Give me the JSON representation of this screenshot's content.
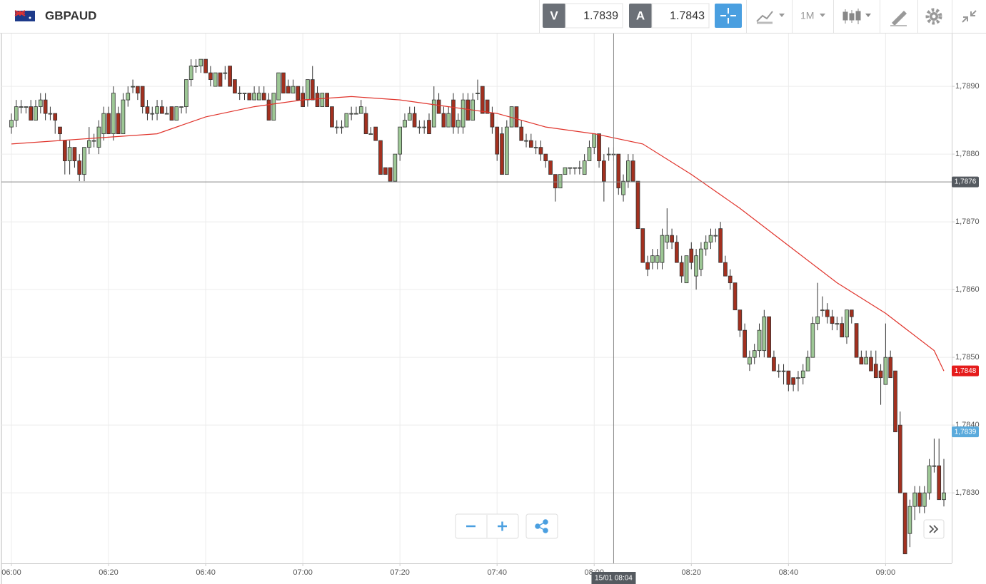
{
  "header": {
    "symbol": "GBPAUD",
    "bid_label": "V",
    "bid": "1.7839",
    "ask_label": "A",
    "ask": "1.7843",
    "timeframe": "1M"
  },
  "chart_data": {
    "type": "candlestick",
    "categories": [
      "06:00",
      null,
      null,
      null,
      null,
      null,
      null,
      null,
      null,
      null,
      null,
      null,
      null,
      null,
      null,
      null,
      null,
      null,
      null,
      null,
      "06:20",
      null,
      null,
      null,
      null,
      null,
      null,
      null,
      null,
      null,
      null,
      null,
      null,
      null,
      null,
      null,
      null,
      null,
      null,
      null,
      "06:40",
      null,
      null,
      null,
      null,
      null,
      null,
      null,
      null,
      null,
      null,
      null,
      null,
      null,
      null,
      null,
      null,
      null,
      null,
      null,
      "07:00",
      null,
      null,
      null,
      null,
      null,
      null,
      null,
      null,
      null,
      null,
      null,
      null,
      null,
      null,
      null,
      null,
      null,
      null,
      null,
      "07:20",
      null,
      null,
      null,
      null,
      null,
      null,
      null,
      null,
      null,
      null,
      null,
      null,
      null,
      null,
      null,
      null,
      null,
      null,
      null,
      "07:40",
      null,
      null,
      null,
      null,
      null,
      null,
      null,
      null,
      null,
      null,
      null,
      null,
      null,
      null,
      null,
      null,
      null,
      null,
      null,
      "08:00",
      null,
      null,
      null,
      null,
      null,
      null,
      null,
      null,
      null,
      null,
      null,
      null,
      null,
      null,
      null,
      null,
      null,
      null,
      null,
      "08:20",
      null,
      null,
      null,
      null,
      null,
      null,
      null,
      null,
      null,
      null,
      null,
      null,
      null,
      null,
      null,
      null,
      null,
      null,
      null,
      "08:40",
      null,
      null,
      null,
      null,
      null,
      null,
      null,
      null,
      null,
      null,
      null,
      null,
      null,
      null,
      null,
      null,
      null,
      null,
      null,
      "09:00",
      null,
      null,
      null,
      null,
      null,
      null,
      null,
      null,
      null,
      null,
      null,
      null
    ],
    "ohlc": [
      [
        1.7884,
        1.7886,
        1.7883,
        1.7885
      ],
      [
        1.7885,
        1.7888,
        1.7884,
        1.7887
      ],
      [
        1.7887,
        1.7888,
        1.7886,
        1.7887
      ],
      [
        1.7887,
        1.7887,
        1.7886,
        1.7887
      ],
      [
        1.7887,
        1.7888,
        1.7885,
        1.7885
      ],
      [
        1.7885,
        1.7888,
        1.7885,
        1.7887
      ],
      [
        1.7887,
        1.7889,
        1.7886,
        1.7888
      ],
      [
        1.7888,
        1.7889,
        1.7885,
        1.7886
      ],
      [
        1.7886,
        1.7887,
        1.7885,
        1.7886
      ],
      [
        1.7886,
        1.7886,
        1.7883,
        1.7885
      ],
      [
        1.7884,
        1.7884,
        1.7882,
        1.7883
      ],
      [
        1.7882,
        1.7882,
        1.7877,
        1.7879
      ],
      [
        1.7879,
        1.7882,
        1.7877,
        1.7881
      ],
      [
        1.7881,
        1.7881,
        1.7878,
        1.7879
      ],
      [
        1.7879,
        1.788,
        1.7876,
        1.7877
      ],
      [
        1.7877,
        1.7881,
        1.7876,
        1.7881
      ],
      [
        1.7881,
        1.7884,
        1.788,
        1.7882
      ],
      [
        1.7882,
        1.7883,
        1.7881,
        1.7882
      ],
      [
        1.7881,
        1.7885,
        1.788,
        1.7884
      ],
      [
        1.7883,
        1.7887,
        1.7882,
        1.7886
      ],
      [
        1.7886,
        1.7887,
        1.7883,
        1.7883
      ],
      [
        1.7883,
        1.789,
        1.7882,
        1.7889
      ],
      [
        1.7886,
        1.7887,
        1.7883,
        1.7883
      ],
      [
        1.7883,
        1.7889,
        1.7883,
        1.7888
      ],
      [
        1.7888,
        1.789,
        1.7887,
        1.7889
      ],
      [
        1.789,
        1.7891,
        1.7889,
        1.789
      ],
      [
        1.789,
        1.789,
        1.7888,
        1.7889
      ],
      [
        1.789,
        1.789,
        1.7886,
        1.7887
      ],
      [
        1.7887,
        1.7888,
        1.7885,
        1.7886
      ],
      [
        1.7886,
        1.7887,
        1.7885,
        1.7886
      ],
      [
        1.7886,
        1.7888,
        1.7885,
        1.7887
      ],
      [
        1.7887,
        1.7888,
        1.7886,
        1.7886
      ],
      [
        1.7886,
        1.7887,
        1.7886,
        1.7886
      ],
      [
        1.7887,
        1.7887,
        1.7885,
        1.7885
      ],
      [
        1.7885,
        1.7887,
        1.7885,
        1.7887
      ],
      [
        1.7887,
        1.7887,
        1.7886,
        1.7887
      ],
      [
        1.7887,
        1.7891,
        1.7886,
        1.7891
      ],
      [
        1.7891,
        1.7894,
        1.789,
        1.7893
      ],
      [
        1.7893,
        1.7894,
        1.7892,
        1.7893
      ],
      [
        1.7893,
        1.7894,
        1.7892,
        1.7894
      ],
      [
        1.7894,
        1.7894,
        1.7892,
        1.7892
      ],
      [
        1.7892,
        1.7893,
        1.789,
        1.7891
      ],
      [
        1.789,
        1.7892,
        1.789,
        1.7892
      ],
      [
        1.7892,
        1.7892,
        1.789,
        1.789
      ],
      [
        1.7892,
        1.7893,
        1.7891,
        1.7892
      ],
      [
        1.7893,
        1.7893,
        1.789,
        1.789
      ],
      [
        1.7891,
        1.7891,
        1.7889,
        1.7889
      ],
      [
        1.7889,
        1.789,
        1.7888,
        1.7889
      ],
      [
        1.7889,
        1.7889,
        1.7888,
        1.7889
      ],
      [
        1.7889,
        1.7889,
        1.7888,
        1.7888
      ],
      [
        1.7888,
        1.789,
        1.7888,
        1.7889
      ],
      [
        1.7888,
        1.789,
        1.7888,
        1.7889
      ],
      [
        1.7889,
        1.789,
        1.7888,
        1.7888
      ],
      [
        1.7888,
        1.7889,
        1.7885,
        1.7885
      ],
      [
        1.7885,
        1.7889,
        1.7885,
        1.7889
      ],
      [
        1.7888,
        1.7892,
        1.7888,
        1.7892
      ],
      [
        1.7892,
        1.7892,
        1.7889,
        1.7889
      ],
      [
        1.789,
        1.7891,
        1.7889,
        1.7889
      ],
      [
        1.7889,
        1.7891,
        1.7889,
        1.789
      ],
      [
        1.789,
        1.789,
        1.7888,
        1.7888
      ],
      [
        1.7889,
        1.789,
        1.7887,
        1.7887
      ],
      [
        1.7888,
        1.7891,
        1.7887,
        1.7891
      ],
      [
        1.7891,
        1.7893,
        1.7888,
        1.7888
      ],
      [
        1.7889,
        1.789,
        1.7887,
        1.7887
      ],
      [
        1.7887,
        1.7889,
        1.7887,
        1.7889
      ],
      [
        1.7889,
        1.7889,
        1.7887,
        1.7887
      ],
      [
        1.7887,
        1.7887,
        1.7884,
        1.7884
      ],
      [
        1.7884,
        1.7885,
        1.7883,
        1.7884
      ],
      [
        1.7884,
        1.7885,
        1.7883,
        1.7884
      ],
      [
        1.7884,
        1.7886,
        1.7884,
        1.7886
      ],
      [
        1.7886,
        1.7887,
        1.7885,
        1.7886
      ],
      [
        1.7886,
        1.7887,
        1.7886,
        1.7886
      ],
      [
        1.7886,
        1.7888,
        1.7886,
        1.7887
      ],
      [
        1.7886,
        1.7887,
        1.7883,
        1.7883
      ],
      [
        1.7883,
        1.7884,
        1.7883,
        1.7883
      ],
      [
        1.7884,
        1.7884,
        1.7882,
        1.7882
      ],
      [
        1.7882,
        1.7882,
        1.7877,
        1.7877
      ],
      [
        1.7878,
        1.7878,
        1.7877,
        1.7877
      ],
      [
        1.7878,
        1.7878,
        1.7876,
        1.7876
      ],
      [
        1.7876,
        1.788,
        1.7876,
        1.788
      ],
      [
        1.788,
        1.7884,
        1.7879,
        1.7884
      ],
      [
        1.7884,
        1.7886,
        1.7884,
        1.7885
      ],
      [
        1.7885,
        1.7887,
        1.7885,
        1.7886
      ],
      [
        1.7886,
        1.7887,
        1.7884,
        1.7884
      ],
      [
        1.7884,
        1.7885,
        1.7883,
        1.7884
      ],
      [
        1.7884,
        1.7885,
        1.7883,
        1.7884
      ],
      [
        1.7885,
        1.7886,
        1.7883,
        1.7883
      ],
      [
        1.7884,
        1.789,
        1.7884,
        1.7888
      ],
      [
        1.7888,
        1.7889,
        1.7886,
        1.7886
      ],
      [
        1.7886,
        1.7887,
        1.7884,
        1.7884
      ],
      [
        1.7884,
        1.7887,
        1.7884,
        1.7886
      ],
      [
        1.7888,
        1.7889,
        1.7883,
        1.7884
      ],
      [
        1.7884,
        1.7886,
        1.7883,
        1.7885
      ],
      [
        1.7884,
        1.7889,
        1.7883,
        1.7888
      ],
      [
        1.7888,
        1.7889,
        1.7885,
        1.7885
      ],
      [
        1.7885,
        1.7889,
        1.7885,
        1.7888
      ],
      [
        1.7889,
        1.7891,
        1.7888,
        1.7889
      ],
      [
        1.789,
        1.789,
        1.7886,
        1.7886
      ],
      [
        1.7888,
        1.7888,
        1.7886,
        1.7886
      ],
      [
        1.7886,
        1.7887,
        1.7883,
        1.7884
      ],
      [
        1.7884,
        1.7884,
        1.7879,
        1.788
      ],
      [
        1.7883,
        1.7884,
        1.7877,
        1.7877
      ],
      [
        1.7877,
        1.7885,
        1.7877,
        1.7884
      ],
      [
        1.7884,
        1.7887,
        1.7884,
        1.7887
      ],
      [
        1.7887,
        1.7887,
        1.7884,
        1.7884
      ],
      [
        1.7884,
        1.7885,
        1.7882,
        1.7882
      ],
      [
        1.7882,
        1.7883,
        1.7881,
        1.7882
      ],
      [
        1.7882,
        1.7883,
        1.7881,
        1.7881
      ],
      [
        1.7881,
        1.7882,
        1.788,
        1.7881
      ],
      [
        1.7881,
        1.7882,
        1.7879,
        1.788
      ],
      [
        1.788,
        1.788,
        1.7878,
        1.7879
      ],
      [
        1.7879,
        1.7879,
        1.7877,
        1.7877
      ],
      [
        1.7877,
        1.7877,
        1.7873,
        1.7875
      ],
      [
        1.7875,
        1.7877,
        1.7875,
        1.7877
      ],
      [
        1.7877,
        1.7878,
        1.7877,
        1.7878
      ],
      [
        1.7878,
        1.7878,
        1.7877,
        1.7878
      ],
      [
        1.7878,
        1.7878,
        1.7877,
        1.7878
      ],
      [
        1.7878,
        1.7879,
        1.7877,
        1.7878
      ],
      [
        1.7877,
        1.788,
        1.7877,
        1.7879
      ],
      [
        1.7879,
        1.7882,
        1.7879,
        1.7881
      ],
      [
        1.7881,
        1.7883,
        1.788,
        1.7883
      ],
      [
        1.7883,
        1.7883,
        1.7878,
        1.7879
      ],
      [
        1.7879,
        1.788,
        1.7873,
        1.7876
      ],
      [
        1.788,
        1.7881,
        1.7879,
        1.788
      ],
      [
        1.788,
        1.7881,
        1.7879,
        1.788
      ],
      [
        1.788,
        1.788,
        1.7874,
        1.7875
      ],
      [
        1.7874,
        1.7877,
        1.7873,
        1.7876
      ],
      [
        1.7876,
        1.788,
        1.7875,
        1.7879
      ],
      [
        1.7879,
        1.788,
        1.7876,
        1.7876
      ],
      [
        1.7876,
        1.7876,
        1.7869,
        1.7869
      ],
      [
        1.7869,
        1.7869,
        1.7864,
        1.7864
      ],
      [
        1.7864,
        1.7865,
        1.7862,
        1.7863
      ],
      [
        1.7864,
        1.7866,
        1.7863,
        1.7865
      ],
      [
        1.7864,
        1.7866,
        1.7863,
        1.7865
      ],
      [
        1.7864,
        1.7869,
        1.7863,
        1.7868
      ],
      [
        1.7867,
        1.7872,
        1.7866,
        1.7868
      ],
      [
        1.7868,
        1.7869,
        1.7866,
        1.7867
      ],
      [
        1.7867,
        1.7868,
        1.7864,
        1.7864
      ],
      [
        1.7864,
        1.7865,
        1.7861,
        1.7862
      ],
      [
        1.7861,
        1.7865,
        1.7861,
        1.7865
      ],
      [
        1.7866,
        1.7867,
        1.7863,
        1.7864
      ],
      [
        1.7862,
        1.7866,
        1.786,
        1.7865
      ],
      [
        1.7863,
        1.7867,
        1.7862,
        1.7866
      ],
      [
        1.7866,
        1.7868,
        1.7865,
        1.7867
      ],
      [
        1.7867,
        1.7869,
        1.7866,
        1.7868
      ],
      [
        1.7868,
        1.7869,
        1.7867,
        1.7868
      ],
      [
        1.7869,
        1.787,
        1.7864,
        1.7864
      ],
      [
        1.7864,
        1.7865,
        1.7862,
        1.7862
      ],
      [
        1.7862,
        1.7863,
        1.786,
        1.7861
      ],
      [
        1.7861,
        1.7861,
        1.7857,
        1.7857
      ],
      [
        1.7857,
        1.7857,
        1.7853,
        1.7854
      ],
      [
        1.7854,
        1.7855,
        1.785,
        1.785
      ],
      [
        1.7849,
        1.7851,
        1.7848,
        1.785
      ],
      [
        1.785,
        1.7852,
        1.7849,
        1.7851
      ],
      [
        1.7851,
        1.7855,
        1.785,
        1.7854
      ],
      [
        1.7851,
        1.7857,
        1.785,
        1.7856
      ],
      [
        1.7856,
        1.7856,
        1.785,
        1.785
      ],
      [
        1.785,
        1.7851,
        1.7848,
        1.7848
      ],
      [
        1.7848,
        1.7849,
        1.7847,
        1.7848
      ],
      [
        1.7848,
        1.7849,
        1.7846,
        1.7848
      ],
      [
        1.7848,
        1.7848,
        1.7845,
        1.7846
      ],
      [
        1.7847,
        1.7847,
        1.7845,
        1.7846
      ],
      [
        1.7847,
        1.7848,
        1.7845,
        1.7847
      ],
      [
        1.7847,
        1.7849,
        1.7846,
        1.7848
      ],
      [
        1.7848,
        1.7851,
        1.7848,
        1.785
      ],
      [
        1.785,
        1.7856,
        1.785,
        1.7855
      ],
      [
        1.7855,
        1.7861,
        1.7854,
        1.7856
      ],
      [
        1.7857,
        1.7859,
        1.7856,
        1.7857
      ],
      [
        1.7857,
        1.7858,
        1.7855,
        1.7856
      ],
      [
        1.7856,
        1.7857,
        1.7854,
        1.7855
      ],
      [
        1.7855,
        1.7856,
        1.7854,
        1.7855
      ],
      [
        1.7855,
        1.7856,
        1.7853,
        1.7853
      ],
      [
        1.7853,
        1.7857,
        1.7852,
        1.7857
      ],
      [
        1.7857,
        1.7857,
        1.7855,
        1.7856
      ],
      [
        1.7855,
        1.7855,
        1.785,
        1.785
      ],
      [
        1.785,
        1.7851,
        1.7849,
        1.7849
      ],
      [
        1.7849,
        1.7851,
        1.7849,
        1.785
      ],
      [
        1.785,
        1.7851,
        1.7848,
        1.7848
      ],
      [
        1.7849,
        1.7851,
        1.7847,
        1.7847
      ],
      [
        1.7848,
        1.7849,
        1.7843,
        1.7847
      ],
      [
        1.7846,
        1.7855,
        1.7846,
        1.785
      ],
      [
        1.785,
        1.7851,
        1.7847,
        1.7847
      ],
      [
        1.7848,
        1.7848,
        1.7839,
        1.7839
      ],
      [
        1.784,
        1.7842,
        1.783,
        1.783
      ],
      [
        1.783,
        1.783,
        1.7821,
        1.7821
      ],
      [
        1.7824,
        1.7829,
        1.7822,
        1.7828
      ],
      [
        1.7828,
        1.7831,
        1.7826,
        1.783
      ],
      [
        1.783,
        1.7831,
        1.7827,
        1.7828
      ],
      [
        1.7828,
        1.7831,
        1.7827,
        1.783
      ],
      [
        1.783,
        1.7835,
        1.7829,
        1.7834
      ],
      [
        1.7834,
        1.7838,
        1.7833,
        1.7834
      ],
      [
        1.7834,
        1.7838,
        1.7829,
        1.7829
      ],
      [
        1.7829,
        1.7835,
        1.7828,
        1.783
      ]
    ],
    "up_color": "#9dc795",
    "down_color": "#a3301f",
    "ma": {
      "color": "#e0342c",
      "x": [
        "06:00",
        "06:10",
        "06:20",
        "06:30",
        "06:40",
        "06:50",
        "07:00",
        "07:10",
        "07:20",
        "07:30",
        "07:40",
        "07:50",
        "08:00",
        "08:10",
        "08:20",
        "08:30",
        "08:40",
        "08:50",
        "09:00",
        "09:10",
        "09:12"
      ],
      "values": [
        1.78815,
        1.7882,
        1.78825,
        1.7883,
        1.78855,
        1.7887,
        1.7888,
        1.78885,
        1.7888,
        1.7887,
        1.7886,
        1.7884,
        1.7883,
        1.78815,
        1.7877,
        1.7872,
        1.78665,
        1.7861,
        1.78565,
        1.7851,
        1.7848
      ]
    },
    "ylim": [
      1.78196,
      1.78978
    ],
    "yticks": [
      {
        "value": 1.783,
        "label": "1,7830"
      },
      {
        "value": 1.784,
        "label": "1,7840"
      },
      {
        "value": 1.785,
        "label": "1,7850"
      },
      {
        "value": 1.786,
        "label": "1,7860"
      },
      {
        "value": 1.787,
        "label": "1,7870"
      },
      {
        "value": 1.788,
        "label": "1,7880"
      },
      {
        "value": 1.789,
        "label": "1,7890"
      }
    ],
    "grid": true,
    "price_tags": [
      {
        "value": 1.7848,
        "label": "1,7848",
        "color": "#e51b1b"
      },
      {
        "value": 1.7839,
        "label": "1,7839",
        "color": "#5aaadc"
      }
    ],
    "crosshair": {
      "label": "15/01 08:04",
      "price": {
        "value": 1.78759,
        "label": "1,7876"
      },
      "color": "#555a60"
    }
  }
}
